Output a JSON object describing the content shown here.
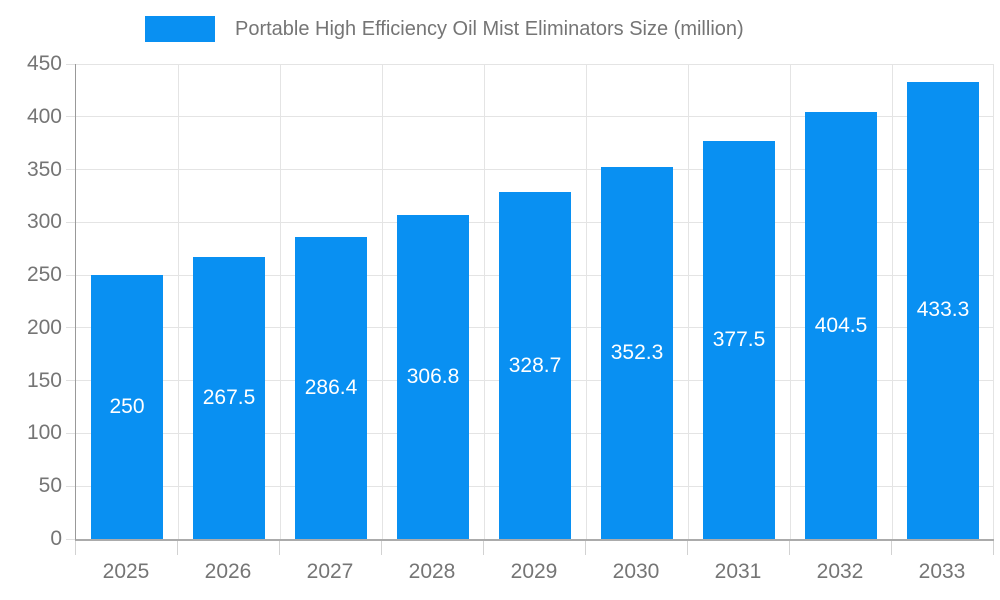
{
  "chart_data": {
    "type": "bar",
    "title": "Portable High Efficiency Oil Mist Eliminators Size (million)",
    "legend": {
      "label": "Portable High Efficiency Oil Mist Eliminators Size (million)",
      "position": "top",
      "swatch_color": "#0990f2"
    },
    "categories": [
      "2025",
      "2026",
      "2027",
      "2028",
      "2029",
      "2030",
      "2031",
      "2032",
      "2033"
    ],
    "values": [
      250,
      267.5,
      286.4,
      306.8,
      328.7,
      352.3,
      377.5,
      404.5,
      433.3
    ],
    "value_labels": [
      "250",
      "267.5",
      "286.4",
      "306.8",
      "328.7",
      "352.3",
      "377.5",
      "404.5",
      "433.3"
    ],
    "xlabel": "",
    "ylabel": "",
    "ylim": [
      0,
      450
    ],
    "ytick_step": 50,
    "ytick_labels": [
      "0",
      "50",
      "100",
      "150",
      "200",
      "250",
      "300",
      "350",
      "400",
      "450"
    ],
    "grid": "on",
    "colors": {
      "bar": "#0990f2",
      "value_label": "#ffffff",
      "grid_line": "#e4e4e4",
      "axis_line": "#9e9e9e",
      "tick_label": "#757575",
      "background": "#ffffff"
    }
  }
}
